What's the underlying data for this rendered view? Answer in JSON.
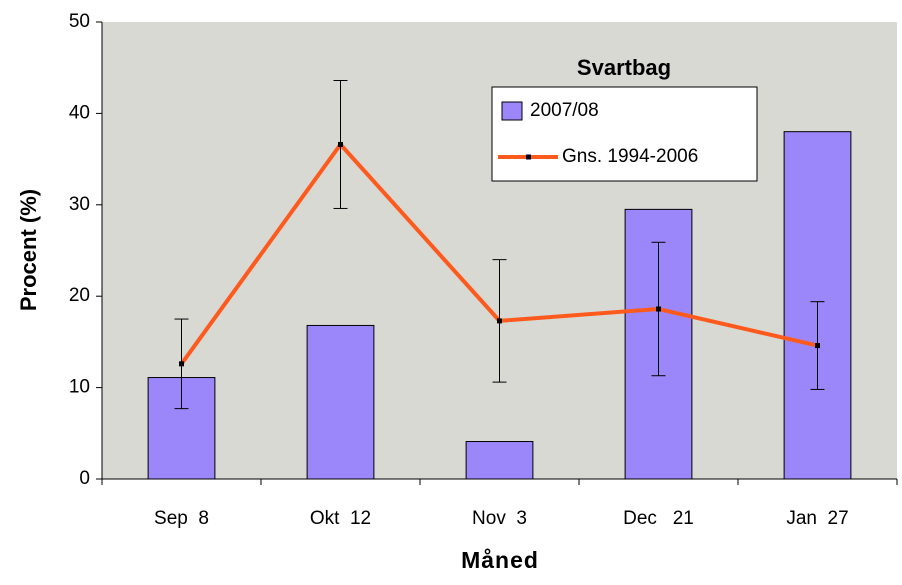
{
  "chart_data": {
    "type": "bar_line",
    "title": "Svartbag",
    "x_label": "Måned",
    "y_label": "Procent (%)",
    "categories": [
      "Sep  8",
      "Okt  12",
      "Nov  3",
      "Dec   21",
      "Jan  27"
    ],
    "series": [
      {
        "name": "2007/08",
        "type": "bar",
        "color": "#9b87fa",
        "values": [
          11.1,
          16.8,
          4.1,
          29.5,
          38.0
        ]
      },
      {
        "name": "Gns. 1994-2006",
        "type": "line",
        "color": "#ff5a1e",
        "values": [
          12.6,
          36.6,
          17.3,
          18.6,
          14.6
        ],
        "errors": [
          4.9,
          7.0,
          6.7,
          7.3,
          4.8
        ]
      }
    ],
    "ylim": [
      0,
      50
    ],
    "yticks": [
      0,
      10,
      20,
      30,
      40,
      50
    ],
    "grid": false
  }
}
